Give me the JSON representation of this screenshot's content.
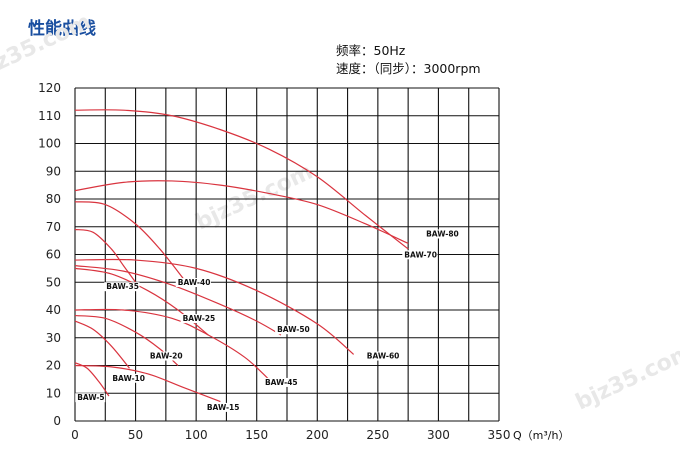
{
  "page": {
    "title": "性能曲线",
    "frequency_label": "频率：50Hz",
    "speed_label": "速度：（同步）：3000rpm",
    "watermark_text": "bjz35.com"
  },
  "chart_data": {
    "type": "line",
    "title": "性能曲线",
    "xlabel": "Q（m³/h）",
    "ylabel": "",
    "xlim": [
      0,
      350
    ],
    "ylim": [
      0,
      120
    ],
    "x_ticks": [
      0,
      50,
      100,
      150,
      200,
      250,
      300,
      350
    ],
    "y_ticks": [
      0,
      10,
      20,
      30,
      40,
      50,
      60,
      70,
      80,
      90,
      100,
      110,
      120
    ],
    "x_grid_step": 25,
    "y_grid_step": 10,
    "grid": true,
    "legend": "none",
    "curve_color": "#d9343f",
    "series": [
      {
        "name": "BAW-80",
        "label_at": [
          289,
          66.5
        ],
        "x": [
          0,
          40,
          80,
          120,
          160,
          200,
          240,
          275
        ],
        "y": [
          112,
          112,
          110,
          105,
          98,
          88,
          74,
          62
        ]
      },
      {
        "name": "BAW-70",
        "label_at": [
          271,
          59
        ],
        "x": [
          0,
          40,
          80,
          120,
          160,
          200,
          240,
          275
        ],
        "y": [
          83,
          86,
          86.5,
          85,
          82,
          78,
          71,
          64
        ]
      },
      {
        "name": "BAW-60",
        "label_at": [
          240,
          22.5
        ],
        "x": [
          0,
          50,
          100,
          150,
          200,
          230
        ],
        "y": [
          58,
          58,
          55,
          47,
          35,
          24
        ]
      },
      {
        "name": "BAW-50",
        "label_at": [
          166,
          32
        ],
        "x": [
          0,
          40,
          80,
          120,
          150,
          170
        ],
        "y": [
          56,
          54,
          49,
          42,
          36,
          31
        ]
      },
      {
        "name": "BAW-45",
        "label_at": [
          156,
          13
        ],
        "x": [
          0,
          40,
          80,
          110,
          140,
          160
        ],
        "y": [
          40,
          40,
          37,
          31,
          23,
          15
        ]
      },
      {
        "name": "BAW-40",
        "label_at": [
          84,
          49
        ],
        "x": [
          0,
          25,
          50,
          70,
          90
        ],
        "y": [
          79,
          78,
          71,
          62,
          51
        ]
      },
      {
        "name": "BAW-35",
        "label_at": [
          25,
          47.5
        ],
        "x": [
          0,
          15,
          30,
          40,
          50
        ],
        "y": [
          69,
          68,
          62,
          56,
          50
        ]
      },
      {
        "name": "BAW-25",
        "label_at": [
          88,
          36
        ],
        "x": [
          0,
          30,
          60,
          85,
          110
        ],
        "y": [
          55,
          53,
          47,
          40,
          31
        ]
      },
      {
        "name": "BAW-20",
        "label_at": [
          61,
          22.5
        ],
        "x": [
          0,
          25,
          50,
          70,
          85
        ],
        "y": [
          38,
          37,
          32,
          26,
          20
        ]
      },
      {
        "name": "BAW-15",
        "label_at": [
          108,
          4
        ],
        "x": [
          0,
          30,
          60,
          90,
          120
        ],
        "y": [
          20,
          19.5,
          17,
          12,
          7
        ]
      },
      {
        "name": "BAW-10",
        "label_at": [
          30,
          14.5
        ],
        "x": [
          0,
          15,
          30,
          45
        ],
        "y": [
          36,
          33,
          27,
          19
        ]
      },
      {
        "name": "BAW-5",
        "label_at": [
          1,
          7.5
        ],
        "x": [
          0,
          10,
          20,
          28
        ],
        "y": [
          21,
          19,
          14,
          9
        ]
      }
    ]
  }
}
